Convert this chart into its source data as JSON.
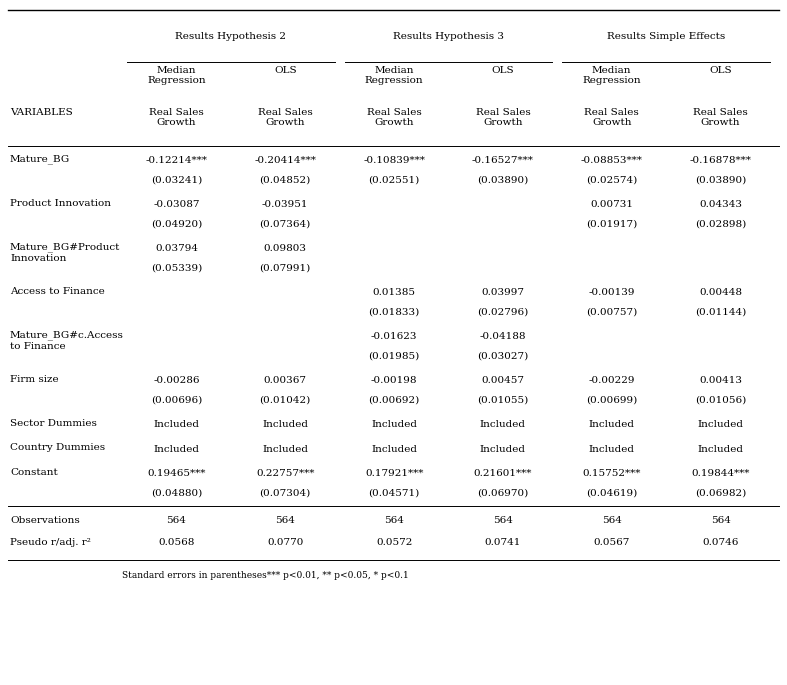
{
  "col_group_headers": [
    "Results Hypothesis 2",
    "Results Hypothesis 3",
    "Results Simple Effects"
  ],
  "col_sub_headers": [
    "Median\nRegression",
    "OLS",
    "Median\nRegression",
    "OLS",
    "Median\nRegression",
    "OLS"
  ],
  "col_var_headers": [
    "Real Sales\nGrowth",
    "Real Sales\nGrowth",
    "Real Sales\nGrowth",
    "Real Sales\nGrowth",
    "Real Sales\nGrowth",
    "Real Sales\nGrowth"
  ],
  "row_label_groups": [
    {
      "label": "Mature_BG",
      "rows": [
        0,
        1
      ]
    },
    {
      "label": "Product Innovation",
      "rows": [
        2,
        3
      ]
    },
    {
      "label": "Mature_BG#Product\nInnovation",
      "rows": [
        4,
        5
      ]
    },
    {
      "label": "Access to Finance",
      "rows": [
        6,
        7
      ]
    },
    {
      "label": "Mature_BG#c.Access\nto Finance",
      "rows": [
        8,
        9
      ]
    },
    {
      "label": "Firm size",
      "rows": [
        10,
        11
      ]
    },
    {
      "label": "Sector Dummies",
      "rows": [
        12
      ]
    },
    {
      "label": "Country Dummies",
      "rows": [
        13
      ]
    },
    {
      "label": "Constant",
      "rows": [
        14,
        15
      ]
    }
  ],
  "data": [
    [
      "-0.12214***",
      "-0.20414***",
      "-0.10839***",
      "-0.16527***",
      "-0.08853***",
      "-0.16878***"
    ],
    [
      "(0.03241)",
      "(0.04852)",
      "(0.02551)",
      "(0.03890)",
      "(0.02574)",
      "(0.03890)"
    ],
    [
      "-0.03087",
      "-0.03951",
      "",
      "",
      "0.00731",
      "0.04343"
    ],
    [
      "(0.04920)",
      "(0.07364)",
      "",
      "",
      "(0.01917)",
      "(0.02898)"
    ],
    [
      "0.03794",
      "0.09803",
      "",
      "",
      "",
      ""
    ],
    [
      "(0.05339)",
      "(0.07991)",
      "",
      "",
      "",
      ""
    ],
    [
      "",
      "",
      "0.01385",
      "0.03997",
      "-0.00139",
      "0.00448"
    ],
    [
      "",
      "",
      "(0.01833)",
      "(0.02796)",
      "(0.00757)",
      "(0.01144)"
    ],
    [
      "",
      "",
      "-0.01623",
      "-0.04188",
      "",
      ""
    ],
    [
      "",
      "",
      "(0.01985)",
      "(0.03027)",
      "",
      ""
    ],
    [
      "-0.00286",
      "0.00367",
      "-0.00198",
      "0.00457",
      "-0.00229",
      "0.00413"
    ],
    [
      "(0.00696)",
      "(0.01042)",
      "(0.00692)",
      "(0.01055)",
      "(0.00699)",
      "(0.01056)"
    ],
    [
      "Included",
      "Included",
      "Included",
      "Included",
      "Included",
      "Included"
    ],
    [
      "Included",
      "Included",
      "Included",
      "Included",
      "Included",
      "Included"
    ],
    [
      "0.19465***",
      "0.22757***",
      "0.17921***",
      "0.21601***",
      "0.15752***",
      "0.19844***"
    ],
    [
      "(0.04880)",
      "(0.07304)",
      "(0.04571)",
      "(0.06970)",
      "(0.04619)",
      "(0.06982)"
    ]
  ],
  "bottom_rows": [
    [
      "Observations",
      "564",
      "564",
      "564",
      "564",
      "564",
      "564"
    ],
    [
      "Pseudo r/adj. r²",
      "0.0568",
      "0.0770",
      "0.0572",
      "0.0741",
      "0.0567",
      "0.0746"
    ]
  ],
  "footnote": "Standard errors in parentheses*** p<0.01, ** p<0.05, * p<0.1",
  "background_color": "#ffffff",
  "text_color": "#000000",
  "font_size": 7.5
}
